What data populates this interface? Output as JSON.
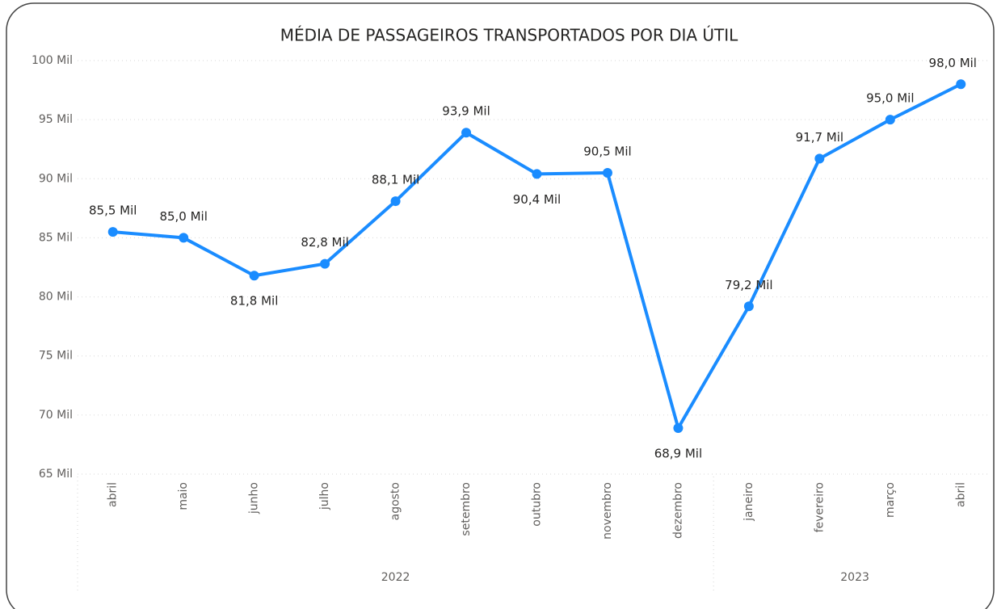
{
  "chart_data": {
    "type": "line",
    "title": "MÉDIA DE PASSAGEIROS TRANSPORTADOS POR DIA ÚTIL",
    "categories": [
      "abril",
      "maio",
      "junho",
      "julho",
      "agosto",
      "setembro",
      "outubro",
      "novembro",
      "dezembro",
      "janeiro",
      "fevereiro",
      "março",
      "abril"
    ],
    "groups": [
      {
        "name": "2022",
        "size": 9
      },
      {
        "name": "2023",
        "size": 4
      }
    ],
    "series": [
      {
        "name": "Passageiros",
        "color": "#1a8cff",
        "values": [
          85.5,
          85.0,
          81.8,
          82.8,
          88.1,
          93.9,
          90.4,
          90.5,
          68.9,
          79.2,
          91.7,
          95.0,
          98.0
        ],
        "value_labels": [
          "85,5 Mil",
          "85,0 Mil",
          "81,8 Mil",
          "82,8 Mil",
          "88,1 Mil",
          "93,9 Mil",
          "90,4 Mil",
          "90,5 Mil",
          "68,9 Mil",
          "79,2 Mil",
          "91,7 Mil",
          "95,0 Mil",
          "98,0 Mil"
        ]
      }
    ],
    "ylim": [
      65,
      100
    ],
    "yticks": [
      {
        "value": 65,
        "label": "65 Mil"
      },
      {
        "value": 70,
        "label": "70 Mil"
      },
      {
        "value": 75,
        "label": "75 Mil"
      },
      {
        "value": 80,
        "label": "80 Mil"
      },
      {
        "value": 85,
        "label": "85 Mil"
      },
      {
        "value": 90,
        "label": "90 Mil"
      },
      {
        "value": 95,
        "label": "95 Mil"
      },
      {
        "value": 100,
        "label": "100 Mil"
      }
    ],
    "grid": true
  }
}
